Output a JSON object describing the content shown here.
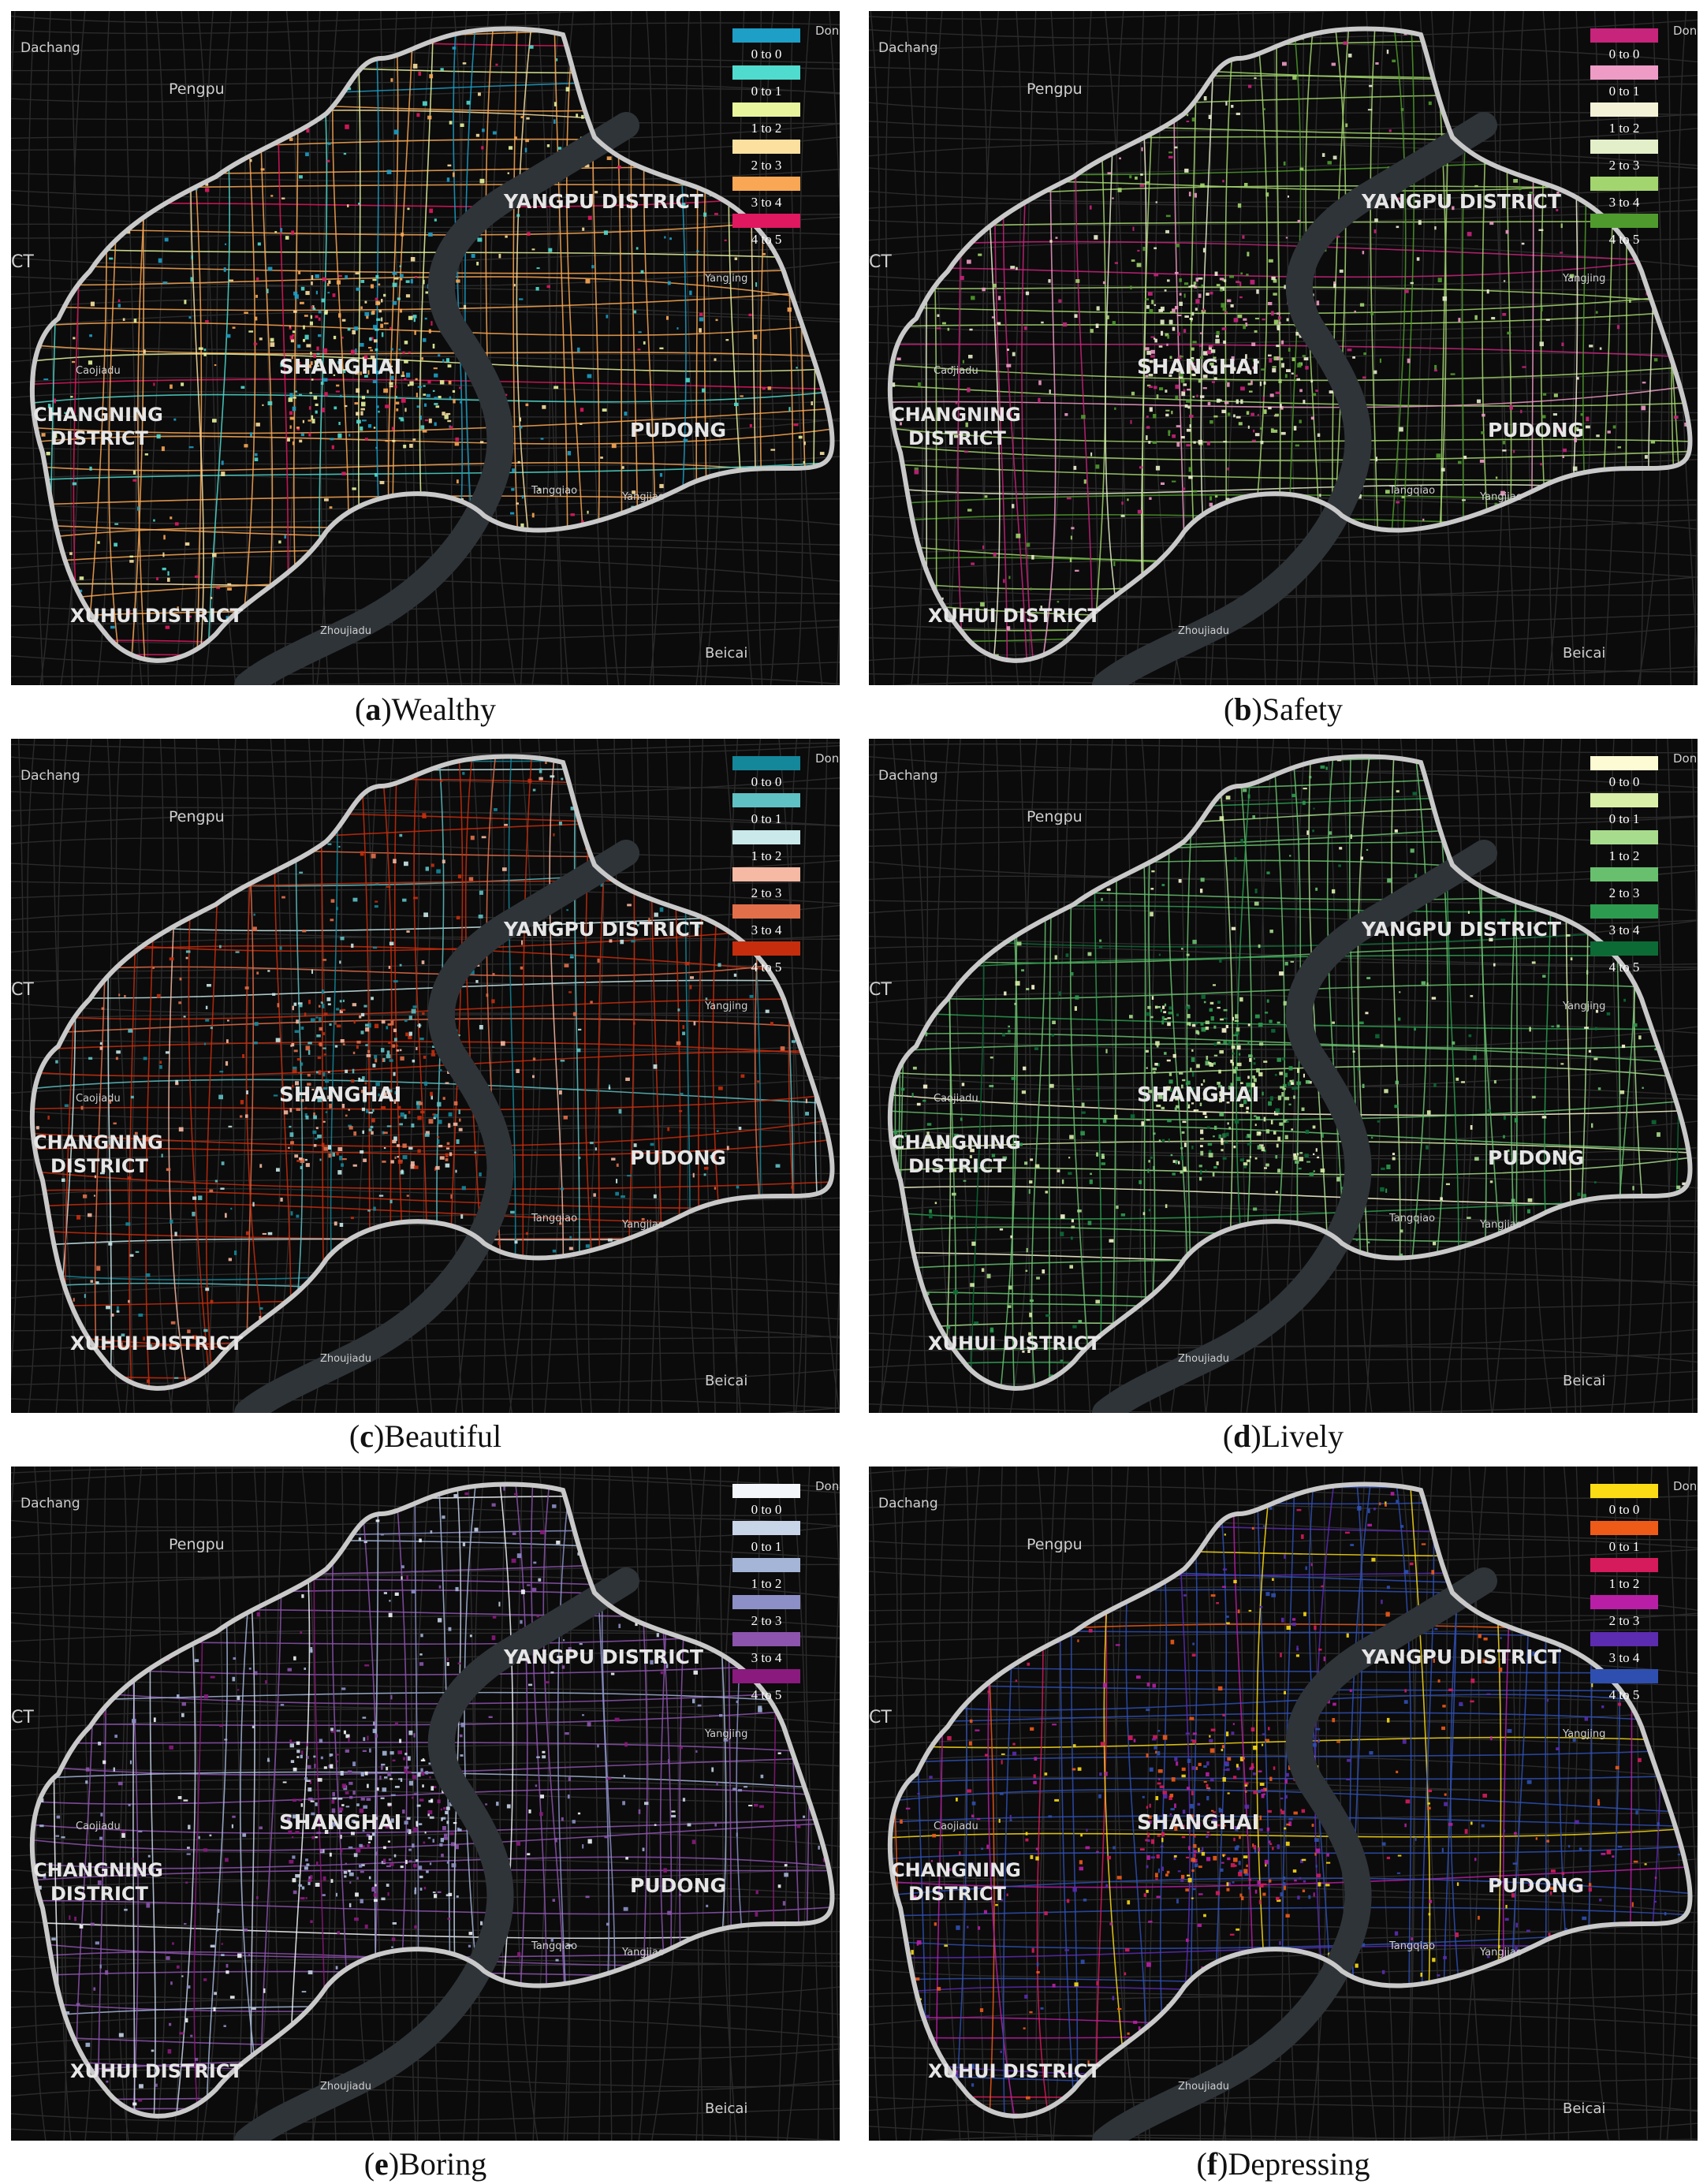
{
  "places": {
    "dachang": "Dachang",
    "pengpu": "Pengpu",
    "yangpu": "YANGPU DISTRICT",
    "shanghai": "SHANGHAI",
    "changning_1": "CHANGNING",
    "changning_2": "DISTRICT",
    "pudong": "PUDONG",
    "xuhui": "XUHUI DISTRICT",
    "beicai": "Beicai",
    "caojiadu": "Caojiadu",
    "yangjing": "Yangjing",
    "tangqiao": "Tangqiao",
    "yangjiao": "Yangjiao",
    "zhoujiadu": "Zhoujiadu",
    "ct": "CT",
    "dongs": "Dong"
  },
  "legend_labels": [
    "0 to 0",
    "0 to 1",
    "1 to 2",
    "2 to 3",
    "3 to 4",
    "4 to 5"
  ],
  "panels": [
    {
      "id": "a",
      "letter": "a",
      "title": "Wealthy",
      "colors": [
        "#1d9fc7",
        "#4fdccf",
        "#e9f59d",
        "#fbe0a0",
        "#f9a754",
        "#e0185f"
      ]
    },
    {
      "id": "b",
      "letter": "b",
      "title": "Safety",
      "colors": [
        "#c7247b",
        "#ee9bc6",
        "#f4f2d6",
        "#e3efc8",
        "#a3d56e",
        "#4f9a2d"
      ]
    },
    {
      "id": "c",
      "letter": "c",
      "title": "Beautiful",
      "colors": [
        "#14879a",
        "#5fc1c4",
        "#c9e9ea",
        "#f6b9a3",
        "#e16f4a",
        "#c62d0d"
      ]
    },
    {
      "id": "d",
      "letter": "d",
      "title": "Lively",
      "colors": [
        "#fdfbd3",
        "#d9f0a8",
        "#a8dc8d",
        "#68c06f",
        "#2d9b4f",
        "#0c6a35"
      ]
    },
    {
      "id": "e",
      "letter": "e",
      "title": "Boring",
      "colors": [
        "#f3f7fb",
        "#c8d4e8",
        "#a4b5d8",
        "#8c90c7",
        "#8c54ad",
        "#8a1a7d"
      ]
    },
    {
      "id": "f",
      "letter": "f",
      "title": "Depressing",
      "colors": [
        "#fbdc14",
        "#ee5a18",
        "#d61b5c",
        "#b81fa6",
        "#5b2bb0",
        "#2f4fb0"
      ]
    }
  ]
}
